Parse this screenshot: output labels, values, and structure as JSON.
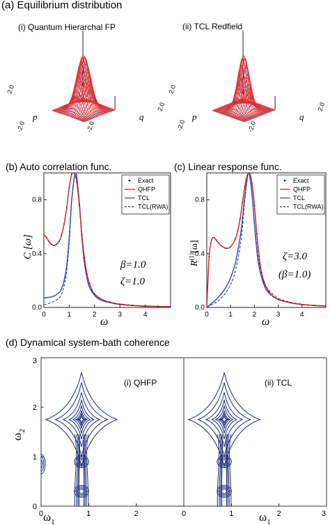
{
  "panel_a": {
    "title": "(a) Equilibrium distribution",
    "sub_i": "(i) Quantum Hierarchal FP",
    "sub_ii": "(ii) TCL Redfield",
    "axis_p": "p",
    "axis_q": "q",
    "tick_pos": "2.0",
    "tick_neg": "-2.0"
  },
  "chart_data": [
    {
      "id": "b",
      "type": "line",
      "title": "(b) Auto correlation func.",
      "xlabel": "ω",
      "ylabel": "C [ω]",
      "xlim": [
        0,
        5
      ],
      "ylim": [
        0,
        1.0
      ],
      "xticks": [
        "0",
        "1",
        "2",
        "3",
        "4"
      ],
      "yticks": [
        "0.0",
        "0.4",
        "0.8"
      ],
      "params": [
        "β=1.0",
        "ζ=1.0"
      ],
      "legend": [
        "Exact",
        "QHFP",
        "TCL",
        "TCL(RWA)"
      ],
      "legend_position": "top-right",
      "series": [
        {
          "name": "Exact",
          "color": "#222222",
          "style": "dots",
          "x": [
            0.0,
            0.1,
            0.2,
            0.3,
            0.4,
            0.5,
            0.6,
            0.7,
            0.8,
            0.9,
            1.0,
            1.1,
            1.2,
            1.3,
            1.4,
            1.5,
            1.6,
            1.7,
            1.8,
            1.9,
            2.0,
            2.2,
            2.4,
            2.6,
            2.8,
            3.0,
            3.5,
            4.0,
            4.5,
            5.0
          ],
          "y": [
            0.54,
            0.52,
            0.49,
            0.47,
            0.46,
            0.47,
            0.49,
            0.54,
            0.62,
            0.74,
            0.89,
            0.99,
            1.0,
            0.93,
            0.76,
            0.54,
            0.37,
            0.25,
            0.18,
            0.13,
            0.1,
            0.07,
            0.05,
            0.04,
            0.03,
            0.025,
            0.016,
            0.011,
            0.008,
            0.006
          ]
        },
        {
          "name": "QHFP",
          "color": "#d22a2a",
          "style": "solid",
          "x": [
            0.0,
            0.1,
            0.2,
            0.3,
            0.4,
            0.5,
            0.6,
            0.7,
            0.8,
            0.9,
            1.0,
            1.1,
            1.2,
            1.3,
            1.4,
            1.5,
            1.6,
            1.7,
            1.8,
            1.9,
            2.0,
            2.2,
            2.4,
            2.6,
            2.8,
            3.0,
            3.5,
            4.0,
            4.5,
            5.0
          ],
          "y": [
            0.54,
            0.52,
            0.49,
            0.47,
            0.46,
            0.47,
            0.49,
            0.54,
            0.62,
            0.74,
            0.89,
            0.99,
            1.0,
            0.93,
            0.76,
            0.54,
            0.37,
            0.25,
            0.18,
            0.13,
            0.1,
            0.07,
            0.05,
            0.04,
            0.03,
            0.025,
            0.016,
            0.011,
            0.008,
            0.006
          ]
        },
        {
          "name": "TCL",
          "color": "#2e55b8",
          "style": "solid",
          "x": [
            0.0,
            0.2,
            0.4,
            0.6,
            0.7,
            0.8,
            0.9,
            1.0,
            1.1,
            1.2,
            1.25,
            1.3,
            1.4,
            1.5,
            1.6,
            1.7,
            1.8,
            2.0,
            2.2,
            2.5,
            3.0,
            3.5,
            4.0,
            4.5,
            5.0
          ],
          "y": [
            0.07,
            0.075,
            0.085,
            0.11,
            0.14,
            0.2,
            0.31,
            0.52,
            0.8,
            0.97,
            1.0,
            0.97,
            0.78,
            0.52,
            0.33,
            0.22,
            0.15,
            0.09,
            0.06,
            0.04,
            0.022,
            0.014,
            0.009,
            0.007,
            0.005
          ]
        },
        {
          "name": "TCL(RWA)",
          "color": "#333355",
          "style": "dashed",
          "x": [
            0.0,
            0.2,
            0.4,
            0.6,
            0.7,
            0.8,
            0.9,
            1.0,
            1.1,
            1.2,
            1.25,
            1.3,
            1.4,
            1.5,
            1.6,
            1.7,
            1.8,
            2.0,
            2.2,
            2.5,
            3.0,
            3.5,
            4.0,
            4.5,
            5.0
          ],
          "y": [
            0.02,
            0.03,
            0.045,
            0.07,
            0.1,
            0.16,
            0.27,
            0.48,
            0.78,
            0.96,
            1.0,
            0.96,
            0.77,
            0.51,
            0.33,
            0.22,
            0.15,
            0.09,
            0.06,
            0.04,
            0.022,
            0.014,
            0.009,
            0.007,
            0.005
          ]
        }
      ]
    },
    {
      "id": "c",
      "type": "line",
      "title": "(c) Linear response func.",
      "xlabel": "ω",
      "ylabel": "R(1)[ω]",
      "ylabel_main": "R",
      "ylabel_sup": "(1)",
      "ylabel_tail": "[ω]",
      "xlim": [
        0,
        5
      ],
      "ylim": [
        0,
        1.0
      ],
      "xticks": [
        "0",
        "1",
        "2",
        "3",
        "4"
      ],
      "yticks": [
        "0.0",
        "0.4",
        "0.8"
      ],
      "params": [
        "ζ=3.0",
        "(β=1.0)"
      ],
      "legend": [
        "Exact",
        "QHFP",
        "TCL",
        "TCL(RWA)"
      ],
      "legend_position": "top-right",
      "series": [
        {
          "name": "Exact",
          "color": "#222222",
          "style": "dots",
          "x": [
            0.0,
            0.1,
            0.2,
            0.3,
            0.4,
            0.5,
            0.6,
            0.8,
            1.0,
            1.2,
            1.3,
            1.4,
            1.5,
            1.6,
            1.7,
            1.8,
            1.9,
            2.0,
            2.1,
            2.2,
            2.3,
            2.4,
            2.6,
            2.8,
            3.0,
            3.5,
            4.0,
            4.5,
            5.0
          ],
          "y": [
            0.0,
            0.38,
            0.5,
            0.52,
            0.5,
            0.48,
            0.46,
            0.44,
            0.45,
            0.51,
            0.57,
            0.66,
            0.78,
            0.9,
            0.98,
            1.0,
            0.92,
            0.76,
            0.55,
            0.38,
            0.26,
            0.19,
            0.12,
            0.08,
            0.06,
            0.035,
            0.022,
            0.015,
            0.01
          ]
        },
        {
          "name": "QHFP",
          "color": "#d22a2a",
          "style": "solid",
          "x": [
            0.0,
            0.1,
            0.2,
            0.3,
            0.4,
            0.5,
            0.6,
            0.8,
            1.0,
            1.2,
            1.3,
            1.4,
            1.5,
            1.6,
            1.7,
            1.8,
            1.9,
            2.0,
            2.1,
            2.2,
            2.3,
            2.4,
            2.6,
            2.8,
            3.0,
            3.5,
            4.0,
            4.5,
            5.0
          ],
          "y": [
            0.0,
            0.38,
            0.5,
            0.52,
            0.5,
            0.48,
            0.46,
            0.44,
            0.45,
            0.51,
            0.57,
            0.66,
            0.78,
            0.9,
            0.98,
            1.0,
            0.92,
            0.76,
            0.55,
            0.38,
            0.26,
            0.19,
            0.12,
            0.08,
            0.06,
            0.035,
            0.022,
            0.015,
            0.01
          ]
        },
        {
          "name": "TCL",
          "color": "#2e55b8",
          "style": "solid",
          "x": [
            0.0,
            0.2,
            0.4,
            0.6,
            0.8,
            1.0,
            1.2,
            1.4,
            1.5,
            1.6,
            1.7,
            1.75,
            1.8,
            1.9,
            2.0,
            2.1,
            2.2,
            2.4,
            2.6,
            3.0,
            3.5,
            4.0,
            4.5,
            5.0
          ],
          "y": [
            0.0,
            0.03,
            0.06,
            0.1,
            0.15,
            0.22,
            0.33,
            0.52,
            0.66,
            0.83,
            0.96,
            1.0,
            0.98,
            0.84,
            0.62,
            0.43,
            0.3,
            0.17,
            0.11,
            0.06,
            0.035,
            0.022,
            0.015,
            0.01
          ]
        },
        {
          "name": "TCL(RWA)",
          "color": "#333355",
          "style": "dashed",
          "x": [
            0.0,
            0.2,
            0.4,
            0.6,
            0.8,
            1.0,
            1.2,
            1.4,
            1.5,
            1.6,
            1.7,
            1.75,
            1.8,
            1.9,
            2.0,
            2.1,
            2.2,
            2.4,
            2.6,
            3.0,
            3.5,
            4.0,
            4.5,
            5.0
          ],
          "y": [
            0.0,
            0.02,
            0.04,
            0.07,
            0.11,
            0.17,
            0.27,
            0.45,
            0.6,
            0.8,
            0.95,
            1.0,
            0.98,
            0.85,
            0.64,
            0.46,
            0.33,
            0.2,
            0.13,
            0.07,
            0.04,
            0.025,
            0.017,
            0.012
          ]
        }
      ]
    }
  ],
  "panel_d": {
    "title": "(d) Dynamical system-bath coherence",
    "label_i": "(i) QHFP",
    "label_ii": "(ii) TCL",
    "ylabel_main": "ω",
    "ylabel_sub": "2",
    "xlabel_main": "ω",
    "xlabel_sub": "1",
    "xlim": [
      0,
      3
    ],
    "ylim": [
      0,
      3
    ],
    "xticks_left": [
      "0",
      "1",
      "2"
    ],
    "xticks_right": [
      "0",
      "1",
      "2",
      "3"
    ],
    "yticks": [
      "0",
      "1",
      "2",
      "3"
    ],
    "contour_color": "#1e2b78",
    "surface_color": "#e03030"
  }
}
